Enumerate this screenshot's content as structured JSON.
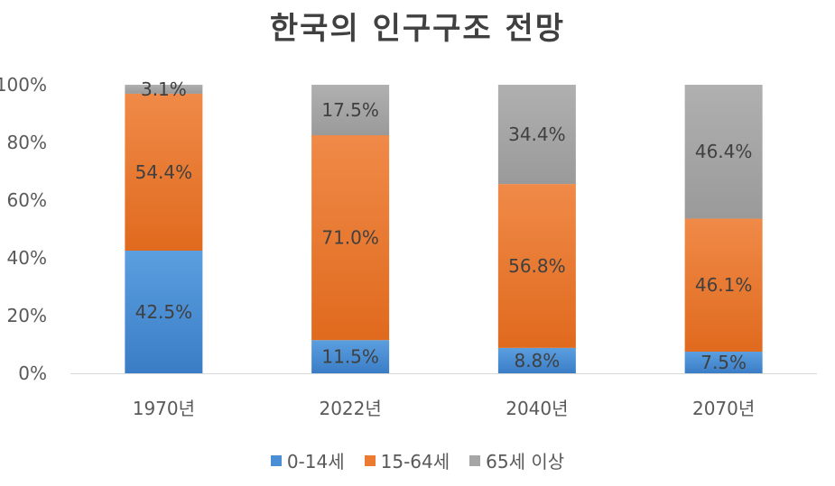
{
  "chart_data": {
    "type": "bar",
    "stacked": true,
    "title": "한국의 인구구조 전망",
    "categories": [
      "1970년",
      "2022년",
      "2040년",
      "2070년"
    ],
    "series": [
      {
        "name": "0-14세",
        "values": [
          42.5,
          11.5,
          8.8,
          7.5
        ],
        "labels": [
          "42.5%",
          "11.5%",
          "8.8%",
          "7.5%"
        ],
        "color": "#4a8fd6"
      },
      {
        "name": "15-64세",
        "values": [
          54.4,
          71.0,
          56.8,
          46.1
        ],
        "labels": [
          "54.4%",
          "71.0%",
          "56.8%",
          "46.1%"
        ],
        "color": "#ec7a30"
      },
      {
        "name": "65세 이상",
        "values": [
          3.1,
          17.5,
          34.4,
          46.4
        ],
        "labels": [
          "3.1%",
          "17.5%",
          "34.4%",
          "46.4%"
        ],
        "color": "#a6a6a6"
      }
    ],
    "ylim": [
      0,
      100
    ],
    "yticks": [
      "0%",
      "20%",
      "40%",
      "60%",
      "80%",
      "100%"
    ],
    "grid": false,
    "legend_position": "bottom"
  }
}
